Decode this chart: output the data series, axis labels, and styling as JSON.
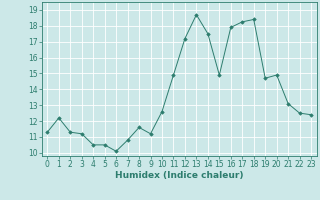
{
  "x": [
    0,
    1,
    2,
    3,
    4,
    5,
    6,
    7,
    8,
    9,
    10,
    11,
    12,
    13,
    14,
    15,
    16,
    17,
    18,
    19,
    20,
    21,
    22,
    23
  ],
  "y": [
    11.3,
    12.2,
    11.3,
    11.2,
    10.5,
    10.5,
    10.1,
    10.8,
    11.6,
    11.2,
    12.6,
    14.9,
    17.2,
    18.7,
    17.5,
    14.9,
    17.9,
    18.25,
    18.4,
    14.7,
    14.9,
    13.1,
    12.5,
    12.4
  ],
  "xlabel": "Humidex (Indice chaleur)",
  "xlim": [
    -0.5,
    23.5
  ],
  "ylim": [
    9.8,
    19.5
  ],
  "yticks": [
    10,
    11,
    12,
    13,
    14,
    15,
    16,
    17,
    18,
    19
  ],
  "xticks": [
    0,
    1,
    2,
    3,
    4,
    5,
    6,
    7,
    8,
    9,
    10,
    11,
    12,
    13,
    14,
    15,
    16,
    17,
    18,
    19,
    20,
    21,
    22,
    23
  ],
  "xtick_labels": [
    "0",
    "1",
    "2",
    "3",
    "4",
    "5",
    "6",
    "7",
    "8",
    "9",
    "10",
    "11",
    "12",
    "13",
    "14",
    "15",
    "16",
    "17",
    "18",
    "19",
    "20",
    "21",
    "22",
    "23"
  ],
  "line_color": "#2d7d6e",
  "marker": "D",
  "marker_size": 1.8,
  "bg_color": "#cce8e8",
  "grid_color": "#ffffff",
  "tick_color": "#2d7d6e",
  "label_color": "#2d7d6e",
  "font_size_ticks": 5.5,
  "font_size_xlabel": 6.5,
  "linewidth": 0.7
}
